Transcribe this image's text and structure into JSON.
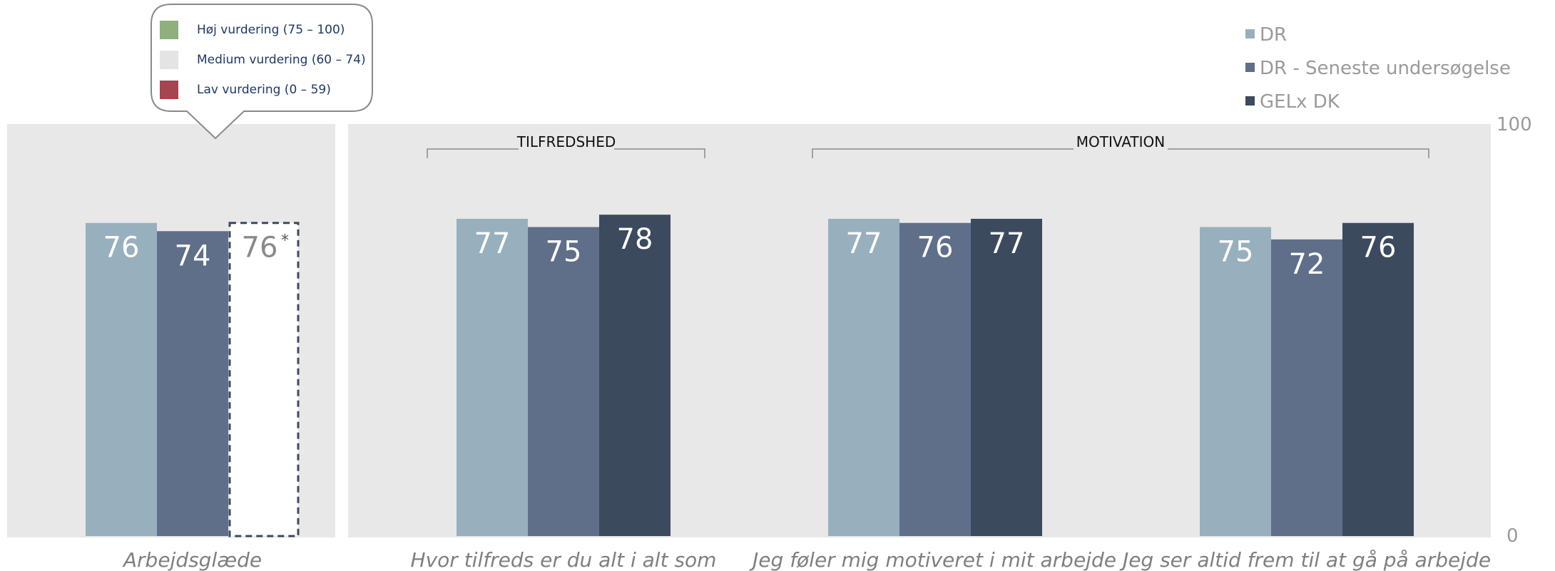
{
  "chart_data": {
    "type": "bar",
    "ylim": [
      0,
      100
    ],
    "yticks": [
      "0",
      "100"
    ],
    "legend": {
      "position": "top-right",
      "entries": [
        {
          "name": "DR",
          "color": "#98b0bd"
        },
        {
          "name": "DR - Seneste undersøgelse",
          "color": "#5f6f8a"
        },
        {
          "name": "GELx DK",
          "color": "#3c4a5e"
        }
      ]
    },
    "rating_legend": [
      {
        "label": "Høj vurdering (75 – 100)",
        "color": "#8faf7d"
      },
      {
        "label": "Medium vurdering (60 – 74)",
        "color": "#e4e4e4"
      },
      {
        "label": "Lav vurdering (0 – 59)",
        "color": "#a5454f"
      }
    ],
    "group_labels": [
      "TILFREDSHED",
      "MOTIVATION"
    ],
    "categories": [
      "Arbejdsglæde",
      "Hvor tilfreds er du alt i alt som",
      "Jeg føler mig motiveret i mit arbejde",
      "Jeg ser altid frem til at gå på arbejde"
    ],
    "series": [
      {
        "name": "DR",
        "values": [
          76,
          77,
          77,
          75
        ]
      },
      {
        "name": "DR - Seneste undersøgelse",
        "values": [
          74,
          75,
          76,
          72
        ]
      },
      {
        "name": "GELx DK",
        "values": [
          76,
          78,
          77,
          76
        ]
      }
    ],
    "first_category_gelx_label": "76",
    "first_category_gelx_marker": "*"
  }
}
